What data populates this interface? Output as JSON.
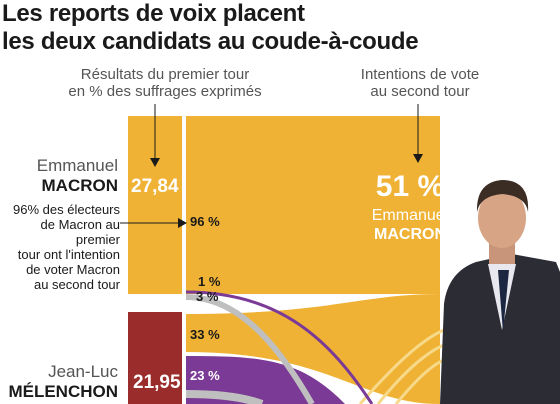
{
  "title_line1": "Les reports de voix placent",
  "title_line2": "les deux candidats au coude-à-coude",
  "header_left_line1": "Résultats du premier tour",
  "header_left_line2": "en % des suffrages exprimés",
  "header_right_line1": "Intentions de vote",
  "header_right_line2": "au second tour",
  "note_lines": [
    "96% des électeurs",
    "de Macron au",
    "premier",
    "tour ont l'intention",
    "de voter Macron",
    "au second tour"
  ],
  "colors": {
    "macron": "#efb234",
    "melenchon": "#9b2c2c",
    "purple": "#7b3a96",
    "grey": "#bfbfbf"
  },
  "chart_data": {
    "type": "sankey",
    "first_round": [
      {
        "first_name": "Emmanuel",
        "last_name": "MACRON",
        "value": "27,84",
        "color": "#efb234"
      },
      {
        "first_name": "Jean-Luc",
        "last_name": "MÉLENCHON",
        "value": "21,95",
        "color": "#9b2c2c"
      }
    ],
    "second_round": [
      {
        "first_name": "Emmanuel",
        "last_name": "MACRON",
        "value": "51 %",
        "color": "#efb234"
      }
    ],
    "flows": [
      {
        "from": "MACRON",
        "label": "96 %",
        "value": 96,
        "color": "#efb234"
      },
      {
        "from": "MACRON",
        "label": "1 %",
        "value": 1,
        "color": "#7b3a96"
      },
      {
        "from": "MACRON",
        "label": "3 %",
        "value": 3,
        "color": "#bfbfbf"
      },
      {
        "from": "MÉLENCHON",
        "label": "33 %",
        "value": 33,
        "color": "#efb234"
      },
      {
        "from": "MÉLENCHON",
        "label": "23 %",
        "value": 23,
        "color": "#7b3a96"
      }
    ]
  }
}
